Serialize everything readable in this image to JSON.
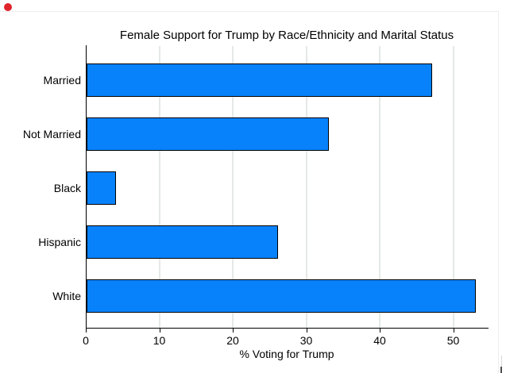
{
  "pane": {
    "marker_dot_color": "#e0242c",
    "border_color": "#ededed"
  },
  "chart_data": {
    "type": "bar",
    "orientation": "horizontal",
    "title": "Female Support for Trump by Race/Ethnicity and Marital Status",
    "categories": [
      "Married",
      "Not Married",
      "Black",
      "Hispanic",
      "White"
    ],
    "values": [
      47,
      33,
      4,
      26,
      53
    ],
    "xlabel": "% Voting for Trump",
    "xlim": [
      0,
      55
    ],
    "xticks": [
      0,
      10,
      20,
      30,
      40,
      50
    ],
    "grid": true,
    "legend": "none",
    "bar_color": "#0882fa",
    "bar_border_color": "#000000",
    "gridline_color": "#e4e9e5"
  }
}
